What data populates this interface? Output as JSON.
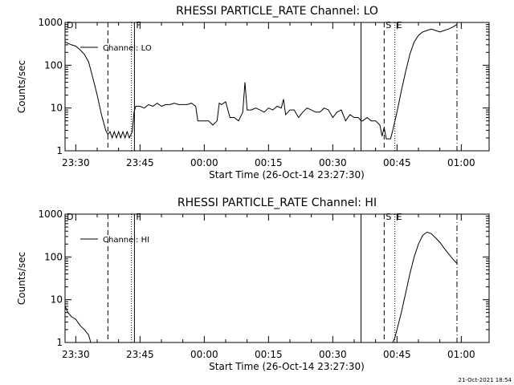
{
  "footer_timestamp": "21-Oct-2021 18:54",
  "chart_data": [
    {
      "type": "line",
      "title": "RHESSI PARTICLE_RATE Channel: LO",
      "xlabel": "Start Time (26-Oct-14 23:27:30)",
      "ylabel": "Counts/sec",
      "yscale": "log",
      "ylim": [
        1,
        1000
      ],
      "xlim_minutes": [
        -2.5,
        96.5
      ],
      "x_tick_labels": [
        "23:30",
        "23:45",
        "00:00",
        "00:15",
        "00:30",
        "00:45",
        "01:00"
      ],
      "x_tick_minutes": [
        0,
        15,
        30,
        45,
        60,
        75,
        90
      ],
      "y_tick_labels": [
        "1",
        "10",
        "100",
        "1000"
      ],
      "y_tick_values": [
        1,
        10,
        100,
        1000
      ],
      "legend": "Channel: LO",
      "legend_position": "top-left",
      "markers": [
        {
          "label": "D",
          "minute": -2.5,
          "style": "none"
        },
        {
          "label": "",
          "minute": 7.5,
          "style": "dashed"
        },
        {
          "label": "",
          "minute": 13.0,
          "style": "dotted"
        },
        {
          "label": "F",
          "minute": 13.7,
          "style": "solid"
        },
        {
          "label": "",
          "minute": 66.6,
          "style": "solid"
        },
        {
          "label": "S",
          "minute": 72.0,
          "style": "dashed"
        },
        {
          "label": "E",
          "minute": 74.5,
          "style": "dotted"
        },
        {
          "label": "",
          "minute": 89.0,
          "style": "dashdot"
        }
      ],
      "series": [
        {
          "name": "Channel: LO",
          "x": [
            -2.5,
            -1,
            0,
            1,
            2,
            3,
            4,
            5,
            6,
            7,
            7.5,
            8,
            8.5,
            9,
            9.5,
            10,
            10.5,
            11,
            11.5,
            12,
            12.5,
            13.2,
            13.6,
            14,
            15,
            16,
            17,
            18,
            19,
            20,
            21,
            22,
            23,
            24,
            25,
            26,
            27,
            28,
            28.5,
            29,
            30,
            31,
            32,
            33,
            33.5,
            34,
            35,
            36,
            37,
            38,
            39,
            39.5,
            40,
            41,
            42,
            43,
            44,
            45,
            46,
            47,
            48,
            48.5,
            49,
            50,
            51,
            52,
            53,
            54,
            55,
            56,
            57,
            58,
            59,
            60,
            61,
            62,
            63,
            64,
            65,
            66,
            66.6,
            67,
            68,
            69,
            70,
            71,
            71.5,
            72,
            72.5,
            73,
            73.5,
            74,
            75,
            76,
            77,
            78,
            79,
            80,
            81,
            82,
            83,
            84,
            85,
            86,
            87,
            88,
            89
          ],
          "y": [
            350,
            300,
            280,
            230,
            180,
            120,
            50,
            20,
            7,
            3,
            2.4,
            2.8,
            2.0,
            2.8,
            2.0,
            2.8,
            2.0,
            2.8,
            2.0,
            2.8,
            2.0,
            2.8,
            8,
            11,
            11,
            10,
            12,
            11,
            13,
            11,
            12,
            12,
            13,
            12,
            12,
            12,
            13,
            11,
            5,
            5,
            5,
            5,
            4,
            5,
            13,
            12,
            14,
            6,
            6,
            5,
            8,
            40,
            9,
            9,
            10,
            9,
            8,
            10,
            9,
            11,
            10,
            16,
            7,
            9,
            9,
            6,
            8,
            10,
            9,
            8,
            8,
            10,
            9,
            6,
            8,
            9,
            5,
            7,
            6,
            6,
            5,
            5,
            6,
            5,
            5,
            4,
            2.2,
            3.5,
            1.9,
            1.9,
            1.9,
            3,
            8,
            25,
            70,
            180,
            350,
            500,
            600,
            650,
            700,
            650,
            600,
            650,
            700,
            780,
            900
          ]
        }
      ]
    },
    {
      "type": "line",
      "title": "RHESSI PARTICLE_RATE Channel: HI",
      "xlabel": "Start Time (26-Oct-14 23:27:30)",
      "ylabel": "Counts/sec",
      "yscale": "log",
      "ylim": [
        1,
        1000
      ],
      "xlim_minutes": [
        -2.5,
        96.5
      ],
      "x_tick_labels": [
        "23:30",
        "23:45",
        "00:00",
        "00:15",
        "00:30",
        "00:45",
        "01:00"
      ],
      "x_tick_minutes": [
        0,
        15,
        30,
        45,
        60,
        75,
        90
      ],
      "y_tick_labels": [
        "1",
        "10",
        "100",
        "1000"
      ],
      "y_tick_values": [
        1,
        10,
        100,
        1000
      ],
      "legend": "Channel: HI",
      "legend_position": "top-left",
      "markers": [
        {
          "label": "D",
          "minute": -2.5,
          "style": "none"
        },
        {
          "label": "",
          "minute": 7.5,
          "style": "dashed"
        },
        {
          "label": "",
          "minute": 13.0,
          "style": "dotted"
        },
        {
          "label": "F",
          "minute": 13.7,
          "style": "solid"
        },
        {
          "label": "",
          "minute": 66.6,
          "style": "solid"
        },
        {
          "label": "S",
          "minute": 72.0,
          "style": "dashed"
        },
        {
          "label": "E",
          "minute": 74.5,
          "style": "dotted"
        },
        {
          "label": "",
          "minute": 89.0,
          "style": "dashdot"
        }
      ],
      "series": [
        {
          "name": "Channel: HI",
          "x": [
            -2.5,
            -1.8,
            -1,
            0,
            1,
            2,
            3,
            3.5,
            74,
            74.5,
            75,
            76,
            77,
            78,
            79,
            80,
            81,
            82,
            83,
            84,
            85,
            86,
            87,
            88,
            89
          ],
          "y": [
            7,
            5,
            4,
            3.5,
            2.5,
            2,
            1.5,
            1,
            1,
            1.3,
            2,
            5,
            14,
            40,
            100,
            200,
            320,
            380,
            350,
            280,
            220,
            160,
            120,
            90,
            70
          ]
        }
      ]
    }
  ]
}
